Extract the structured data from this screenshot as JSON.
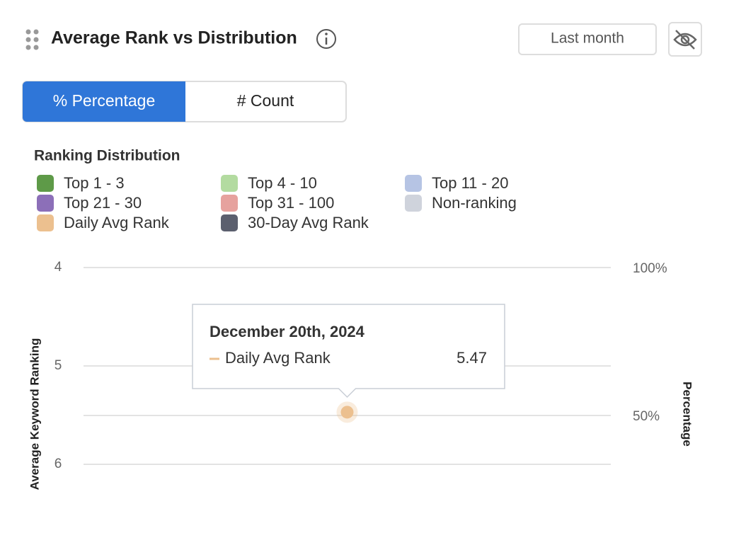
{
  "controls": {
    "date_range": "Last month",
    "modes": [
      "% Percentage",
      "# Count"
    ],
    "active_mode": 0
  },
  "chart_data": {
    "type": "combo",
    "title": "Average Rank vs Distribution",
    "legend_title": "Ranking Distribution",
    "y_label": "Average Keyword Ranking",
    "y2_label": "Percentage",
    "x": [
      "December 20th, 2024"
    ],
    "ylim": [
      4,
      6
    ],
    "y_reversed": true,
    "yticks": [
      4,
      5,
      6
    ],
    "y2lim": [
      33.5,
      100
    ],
    "y2ticks": [
      {
        "value": 100,
        "label": "100%"
      },
      {
        "value": 50,
        "label": "50%"
      }
    ],
    "grid": true,
    "tooltip_index": 0,
    "series": [
      {
        "name": "Top 1 - 3",
        "color": "#5e9a48",
        "type": "bar",
        "axis": "y2",
        "values": [
          null
        ]
      },
      {
        "name": "Top 4 - 10",
        "color": "#b3dba0",
        "type": "bar",
        "axis": "y2",
        "values": [
          null
        ]
      },
      {
        "name": "Top 11 - 20",
        "color": "#b6c4e4",
        "type": "bar",
        "axis": "y2",
        "values": [
          null
        ]
      },
      {
        "name": "Top 21 - 30",
        "color": "#8c6fb8",
        "type": "bar",
        "axis": "y2",
        "values": [
          null
        ]
      },
      {
        "name": "Top 31 - 100",
        "color": "#e6a29e",
        "type": "bar",
        "axis": "y2",
        "values": [
          null
        ]
      },
      {
        "name": "Non-ranking",
        "color": "#cfd3dc",
        "type": "bar",
        "axis": "y2",
        "values": [
          null
        ]
      },
      {
        "name": "Daily Avg Rank",
        "color": "#ecc08f",
        "type": "line",
        "axis": "y",
        "values": [
          5.47
        ]
      },
      {
        "name": "30-Day Avg Rank",
        "color": "#5b5f6e",
        "type": "line",
        "axis": "y",
        "values": [
          null
        ]
      }
    ]
  }
}
